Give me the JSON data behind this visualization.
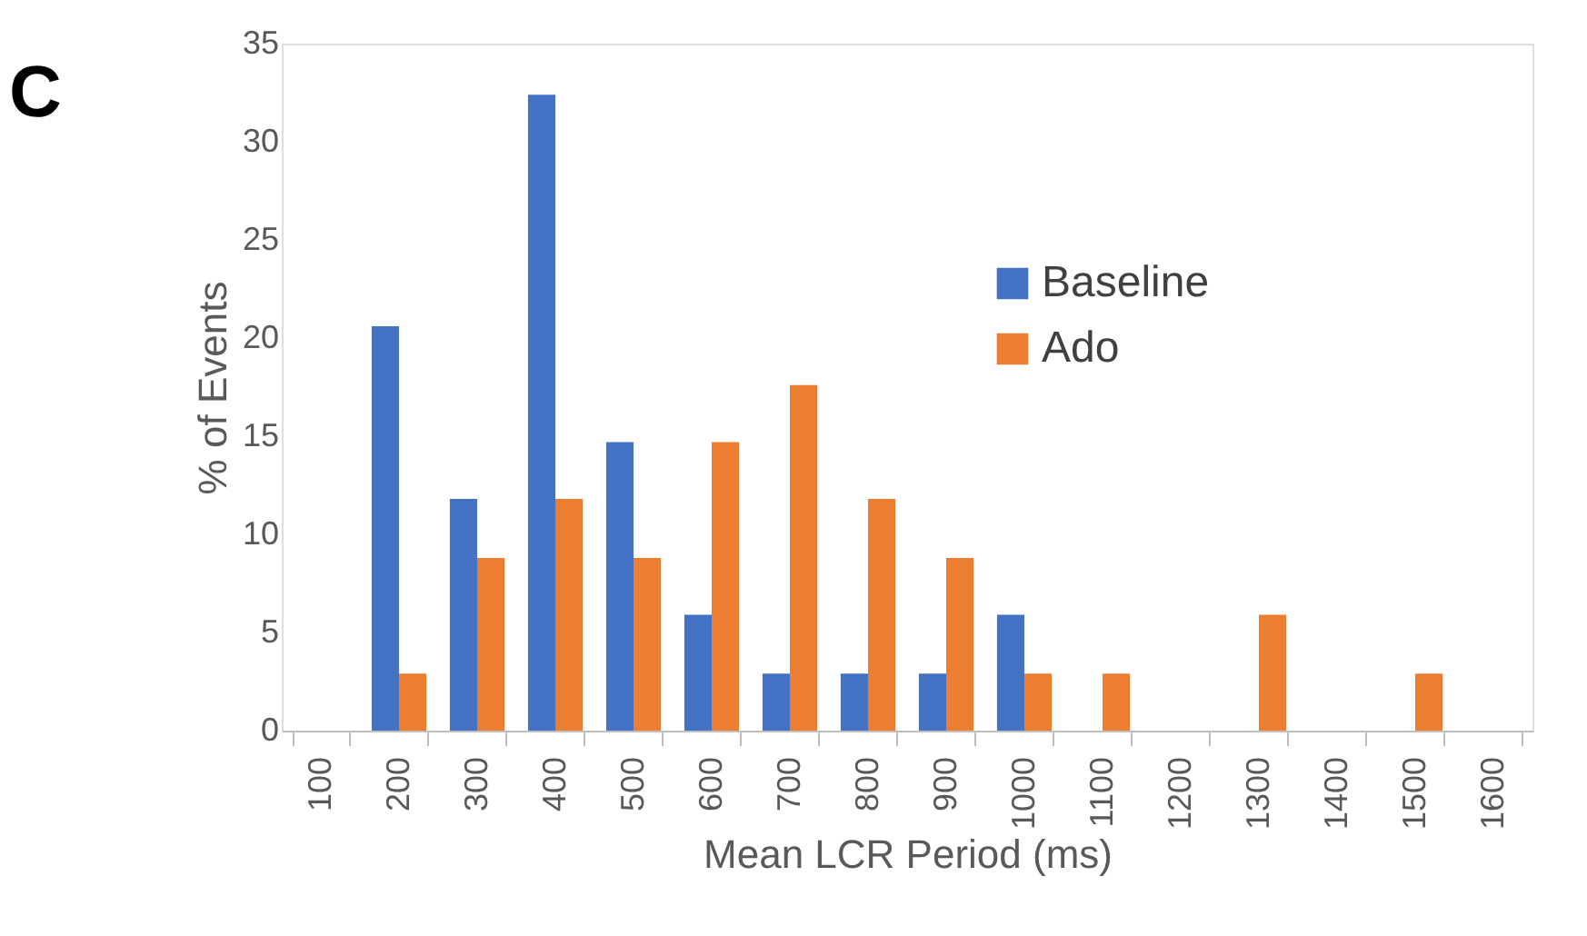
{
  "chart_data": {
    "type": "bar",
    "xlabel": "Mean LCR Period (ms)",
    "ylabel": "% of Events",
    "annotations": [
      "C"
    ],
    "categories": [
      "100",
      "200",
      "300",
      "400",
      "500",
      "600",
      "700",
      "800",
      "900",
      "1000",
      "1100",
      "1200",
      "1300",
      "1400",
      "1500",
      "1600"
    ],
    "series": [
      {
        "name": "Baseline",
        "color": "#4472c4",
        "values": [
          0,
          20.6,
          11.8,
          32.4,
          14.7,
          5.9,
          2.9,
          2.9,
          2.9,
          5.9,
          0,
          0,
          0,
          0,
          0,
          0
        ]
      },
      {
        "name": "Ado",
        "color": "#ed7d31",
        "values": [
          0,
          2.9,
          8.8,
          11.8,
          8.8,
          14.7,
          17.6,
          11.8,
          8.8,
          2.9,
          2.9,
          0,
          5.9,
          0,
          2.9,
          0
        ]
      }
    ],
    "ylim": [
      0,
      35
    ],
    "yticks": [
      0,
      5,
      10,
      15,
      20,
      25,
      30,
      35
    ],
    "grid": false,
    "legend": "right"
  }
}
